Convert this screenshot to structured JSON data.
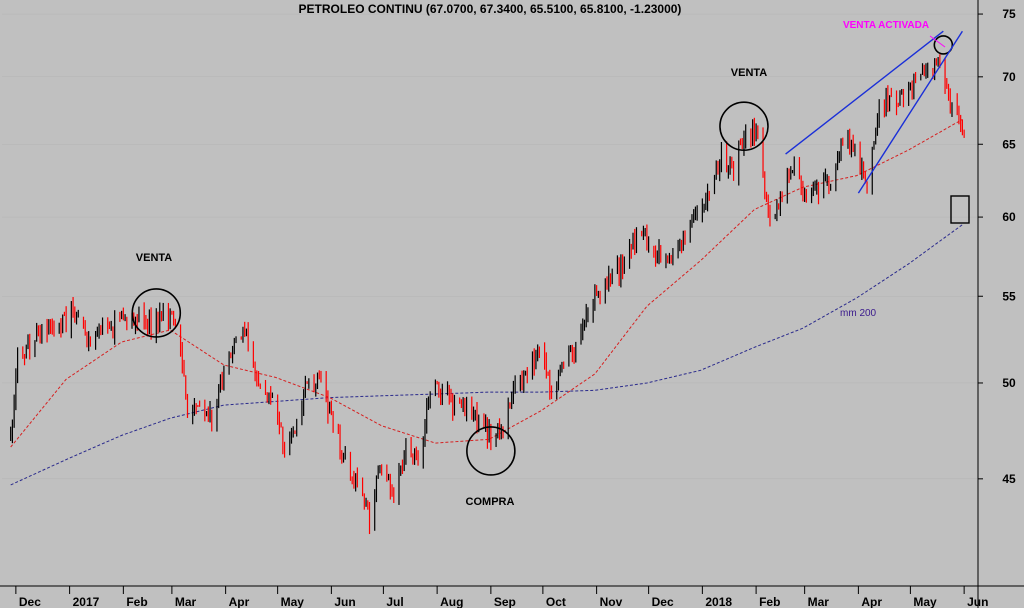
{
  "chart_data": {
    "type": "candlestick",
    "title": "PETROLEO CONTINU (67.0700, 67.3400, 65.5100, 65.8100, -1.23000)",
    "y_scale": "log",
    "ylim": [
      40,
      76
    ],
    "yticks": [
      45,
      50,
      55,
      60,
      65,
      70,
      75
    ],
    "xlabels": [
      "Dec",
      "2017",
      "Feb",
      "Mar",
      "Apr",
      "May",
      "Jun",
      "Jul",
      "Aug",
      "Sep",
      "Oct",
      "Nov",
      "Dec",
      "2018",
      "Feb",
      "Mar",
      "Apr",
      "May",
      "Jun"
    ],
    "close_series": {
      "name": "PETROLEO CONTINU",
      "points": [
        [
          "2016-11-28",
          47.0
        ],
        [
          "2016-12-02",
          51.5
        ],
        [
          "2016-12-09",
          52.0
        ],
        [
          "2016-12-16",
          52.8
        ],
        [
          "2016-12-23",
          53.0
        ],
        [
          "2016-12-30",
          53.7
        ],
        [
          "2017-01-06",
          53.9
        ],
        [
          "2017-01-13",
          52.4
        ],
        [
          "2017-01-20",
          53.2
        ],
        [
          "2017-01-27",
          53.2
        ],
        [
          "2017-02-03",
          53.7
        ],
        [
          "2017-02-10",
          53.9
        ],
        [
          "2017-02-17",
          53.4
        ],
        [
          "2017-02-24",
          54.0
        ],
        [
          "2017-03-03",
          53.3
        ],
        [
          "2017-03-10",
          48.5
        ],
        [
          "2017-03-17",
          48.8
        ],
        [
          "2017-03-24",
          47.9
        ],
        [
          "2017-03-31",
          50.6
        ],
        [
          "2017-04-07",
          52.2
        ],
        [
          "2017-04-13",
          53.2
        ],
        [
          "2017-04-21",
          49.6
        ],
        [
          "2017-04-28",
          49.3
        ],
        [
          "2017-05-05",
          46.2
        ],
        [
          "2017-05-12",
          47.8
        ],
        [
          "2017-05-19",
          50.3
        ],
        [
          "2017-05-26",
          49.8
        ],
        [
          "2017-06-02",
          47.7
        ],
        [
          "2017-06-09",
          45.8
        ],
        [
          "2017-06-16",
          44.7
        ],
        [
          "2017-06-23",
          43.0
        ],
        [
          "2017-06-30",
          46.0
        ],
        [
          "2017-07-07",
          44.2
        ],
        [
          "2017-07-14",
          46.5
        ],
        [
          "2017-07-21",
          45.8
        ],
        [
          "2017-07-28",
          49.7
        ],
        [
          "2017-08-04",
          49.6
        ],
        [
          "2017-08-11",
          48.8
        ],
        [
          "2017-08-18",
          48.5
        ],
        [
          "2017-08-25",
          47.9
        ],
        [
          "2017-09-01",
          47.3
        ],
        [
          "2017-09-08",
          47.5
        ],
        [
          "2017-09-15",
          49.9
        ],
        [
          "2017-09-22",
          50.7
        ],
        [
          "2017-09-29",
          51.7
        ],
        [
          "2017-10-06",
          49.3
        ],
        [
          "2017-10-13",
          51.5
        ],
        [
          "2017-10-20",
          51.8
        ],
        [
          "2017-10-27",
          53.9
        ],
        [
          "2017-11-03",
          55.6
        ],
        [
          "2017-11-10",
          56.7
        ],
        [
          "2017-11-17",
          56.5
        ],
        [
          "2017-11-24",
          58.9
        ],
        [
          "2017-12-01",
          58.4
        ],
        [
          "2017-12-08",
          57.4
        ],
        [
          "2017-12-15",
          57.3
        ],
        [
          "2017-12-22",
          58.5
        ],
        [
          "2017-12-29",
          60.4
        ],
        [
          "2018-01-05",
          61.4
        ],
        [
          "2018-01-12",
          64.3
        ],
        [
          "2018-01-19",
          63.3
        ],
        [
          "2018-01-26",
          66.1
        ],
        [
          "2018-02-02",
          65.4
        ],
        [
          "2018-02-09",
          59.2
        ],
        [
          "2018-02-16",
          61.6
        ],
        [
          "2018-02-23",
          63.5
        ],
        [
          "2018-03-02",
          61.2
        ],
        [
          "2018-03-09",
          62.0
        ],
        [
          "2018-03-16",
          62.3
        ],
        [
          "2018-03-23",
          65.9
        ],
        [
          "2018-03-30",
          64.9
        ],
        [
          "2018-04-06",
          62.1
        ],
        [
          "2018-04-13",
          67.4
        ],
        [
          "2018-04-20",
          68.4
        ],
        [
          "2018-04-27",
          68.1
        ],
        [
          "2018-05-04",
          69.7
        ],
        [
          "2018-05-11",
          70.7
        ],
        [
          "2018-05-18",
          71.3
        ],
        [
          "2018-05-25",
          67.9
        ],
        [
          "2018-06-01",
          65.8
        ]
      ]
    },
    "ma_short": {
      "name": "",
      "color": "#d62020",
      "points": [
        [
          "2016-11-28",
          46.6
        ],
        [
          "2016-12-30",
          50.2
        ],
        [
          "2017-01-31",
          52.3
        ],
        [
          "2017-02-28",
          53.0
        ],
        [
          "2017-03-31",
          51.0
        ],
        [
          "2017-04-30",
          50.3
        ],
        [
          "2017-05-31",
          49.2
        ],
        [
          "2017-06-30",
          47.7
        ],
        [
          "2017-07-31",
          46.8
        ],
        [
          "2017-08-31",
          47.0
        ],
        [
          "2017-09-30",
          48.5
        ],
        [
          "2017-10-31",
          50.5
        ],
        [
          "2017-11-30",
          54.4
        ],
        [
          "2017-12-31",
          57.2
        ],
        [
          "2018-01-31",
          60.5
        ],
        [
          "2018-02-28",
          62.0
        ],
        [
          "2018-03-31",
          62.8
        ],
        [
          "2018-04-30",
          64.6
        ],
        [
          "2018-05-31",
          66.8
        ]
      ]
    },
    "ma_long": {
      "name": "mm 200",
      "color": "#2a2a8c",
      "points": [
        [
          "2016-11-28",
          44.7
        ],
        [
          "2016-12-31",
          46.0
        ],
        [
          "2017-01-31",
          47.2
        ],
        [
          "2017-02-28",
          48.1
        ],
        [
          "2017-03-31",
          48.8
        ],
        [
          "2017-04-30",
          49.0
        ],
        [
          "2017-05-31",
          49.2
        ],
        [
          "2017-06-30",
          49.3
        ],
        [
          "2017-07-31",
          49.4
        ],
        [
          "2017-08-31",
          49.5
        ],
        [
          "2017-09-30",
          49.5
        ],
        [
          "2017-10-31",
          49.6
        ],
        [
          "2017-11-30",
          50.0
        ],
        [
          "2017-12-31",
          50.7
        ],
        [
          "2018-01-31",
          52.0
        ],
        [
          "2018-02-28",
          53.1
        ],
        [
          "2018-03-31",
          54.9
        ],
        [
          "2018-04-30",
          57.0
        ],
        [
          "2018-05-31",
          59.5
        ]
      ]
    },
    "annotations": {
      "venta_left": "VENTA",
      "compra": "COMPRA",
      "venta_right": "VENTA",
      "venta_activada": "VENTA ACTIVADA",
      "mm200": "mm 200"
    },
    "colors": {
      "background": "#c0c0c0",
      "up": "#000000",
      "down": "#ff0000",
      "trendline": "#1a2fd8",
      "highlight": "#ff00ff"
    }
  }
}
